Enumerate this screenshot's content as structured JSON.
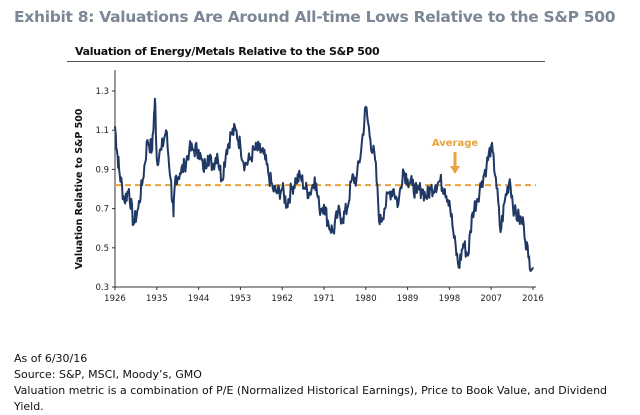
{
  "title": "Exhibit 8: Valuations Are Around All-time Lows Relative to the S&P 500",
  "notes": [
    "As of 6/30/16",
    "Source: S&P, MSCI, Moody’s, GMO",
    "Valuation metric is a combination of P/E (Normalized Historical Earnings), Price to Book Value, and Dividend Yield."
  ],
  "colors": {
    "line": "#1f3864",
    "average": "#e8a33a",
    "title": "#7b8794"
  },
  "chart_data": {
    "type": "line",
    "title": "Valuation of Energy/Metals Relative to the S&P 500",
    "xlabel": "",
    "ylabel": "Valuation Relative to S&P 500",
    "xlim": [
      1926,
      2016
    ],
    "ylim": [
      0.3,
      1.35
    ],
    "xticks": [
      "1926",
      "1935",
      "1944",
      "1953",
      "1962",
      "1971",
      "1980",
      "1989",
      "1998",
      "2007",
      "2016"
    ],
    "yticks": [
      "0.3",
      "0.5",
      "0.7",
      "0.9",
      "1.1",
      "1.3"
    ],
    "grid": false,
    "average": {
      "label": "Average",
      "value": 0.82
    },
    "series": [
      {
        "x": [
          1926,
          1926.5,
          1927,
          1928,
          1929,
          1930,
          1931,
          1932,
          1933,
          1934,
          1934.6,
          1935,
          1936,
          1937,
          1938,
          1938.6,
          1939,
          1940,
          1941,
          1942,
          1943,
          1944,
          1945,
          1946,
          1947,
          1948,
          1949,
          1950,
          1951,
          1952,
          1953,
          1954,
          1955,
          1956,
          1957,
          1958,
          1959,
          1960,
          1961,
          1962,
          1963,
          1964,
          1965,
          1966,
          1967,
          1968,
          1969,
          1970,
          1971,
          1972,
          1973,
          1974,
          1975,
          1976,
          1977,
          1978,
          1979,
          1980,
          1981,
          1982,
          1983,
          1984,
          1985,
          1986,
          1987,
          1988,
          1989,
          1990,
          1991,
          1992,
          1993,
          1994,
          1995,
          1996,
          1997,
          1998,
          1999,
          2000,
          2001,
          2002,
          2003,
          2004,
          2005,
          2006,
          2007,
          2008,
          2009,
          2010,
          2011,
          2012,
          2013,
          2014,
          2015,
          2016
        ],
        "y": [
          1.12,
          0.98,
          0.88,
          0.74,
          0.8,
          0.62,
          0.7,
          0.85,
          1.05,
          1.0,
          1.26,
          0.95,
          1.0,
          1.1,
          0.85,
          0.66,
          0.86,
          0.88,
          0.92,
          1.0,
          1.0,
          1.0,
          0.9,
          0.97,
          0.92,
          0.98,
          0.85,
          1.0,
          1.08,
          1.1,
          1.02,
          0.92,
          0.95,
          1.0,
          1.0,
          0.98,
          0.88,
          0.8,
          0.78,
          0.8,
          0.72,
          0.8,
          0.85,
          0.86,
          0.8,
          0.78,
          0.86,
          0.7,
          0.72,
          0.62,
          0.58,
          0.68,
          0.65,
          0.7,
          0.85,
          0.85,
          1.0,
          1.22,
          1.05,
          0.95,
          0.62,
          0.7,
          0.78,
          0.8,
          0.72,
          0.9,
          0.85,
          0.82,
          0.78,
          0.8,
          0.76,
          0.8,
          0.82,
          0.84,
          0.8,
          0.74,
          0.55,
          0.4,
          0.52,
          0.46,
          0.68,
          0.75,
          0.84,
          0.92,
          1.02,
          0.86,
          0.58,
          0.75,
          0.85,
          0.68,
          0.65,
          0.62,
          0.45,
          0.4
        ]
      }
    ]
  }
}
